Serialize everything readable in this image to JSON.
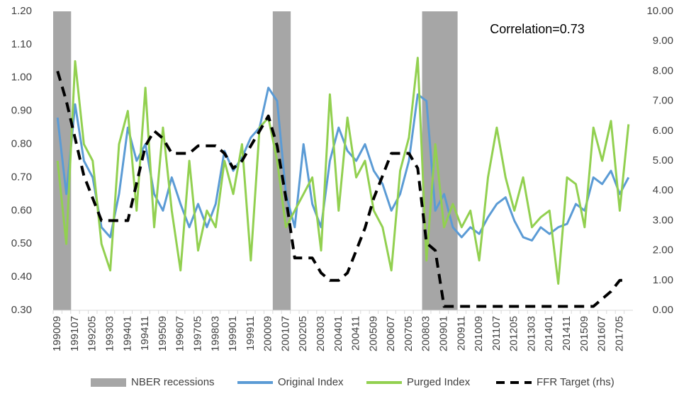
{
  "chart_data": {
    "type": "line",
    "annotation": "Correlation=0.73",
    "categories": [
      "199009",
      null,
      "199107",
      null,
      "199205",
      null,
      "199303",
      null,
      "199401",
      null,
      "199411",
      null,
      "199509",
      null,
      "199607",
      null,
      "199705",
      null,
      "199803",
      null,
      "199901",
      null,
      "199911",
      null,
      "200009",
      null,
      "200107",
      null,
      "200205",
      null,
      "200303",
      null,
      "200401",
      null,
      "200411",
      null,
      "200509",
      null,
      "200607",
      null,
      "200705",
      null,
      "200803",
      null,
      "200901",
      null,
      "200911",
      null,
      "201009",
      null,
      "201107",
      null,
      "201205",
      null,
      "201303",
      null,
      "201401",
      null,
      "201411",
      null,
      "201509",
      null,
      "201607",
      null,
      "201705",
      null
    ],
    "ylim": [
      0.3,
      1.2
    ],
    "yticks": [
      {
        "value": 0.3,
        "label": "0.30"
      },
      {
        "value": 0.4,
        "label": "0.40"
      },
      {
        "value": 0.5,
        "label": "0.50"
      },
      {
        "value": 0.6,
        "label": "0.60"
      },
      {
        "value": 0.7,
        "label": "0.70"
      },
      {
        "value": 0.8,
        "label": "0.80"
      },
      {
        "value": 0.9,
        "label": "0.90"
      },
      {
        "value": 1.0,
        "label": "1.00"
      },
      {
        "value": 1.1,
        "label": "1.10"
      },
      {
        "value": 1.2,
        "label": "1.20"
      }
    ],
    "y2lim": [
      0,
      10
    ],
    "y2ticks": [
      {
        "value": 0,
        "label": "0.00"
      },
      {
        "value": 1,
        "label": "1.00"
      },
      {
        "value": 2,
        "label": "2.00"
      },
      {
        "value": 3,
        "label": "3.00"
      },
      {
        "value": 4,
        "label": "4.00"
      },
      {
        "value": 5,
        "label": "5.00"
      },
      {
        "value": 6,
        "label": "6.00"
      },
      {
        "value": 7,
        "label": "7.00"
      },
      {
        "value": 8,
        "label": "8.00"
      },
      {
        "value": 9,
        "label": "9.00"
      },
      {
        "value": 10,
        "label": "10.00"
      }
    ],
    "series": [
      {
        "name": "NBER recessions",
        "type": "bar",
        "color": "#a6a6a6",
        "values": [
          1.2,
          1.2,
          null,
          null,
          null,
          null,
          null,
          null,
          null,
          null,
          null,
          null,
          null,
          null,
          null,
          null,
          null,
          null,
          null,
          null,
          null,
          null,
          null,
          null,
          null,
          1.2,
          1.2,
          null,
          null,
          null,
          null,
          null,
          null,
          null,
          null,
          null,
          null,
          null,
          null,
          null,
          null,
          null,
          1.2,
          1.2,
          1.2,
          1.2,
          null,
          null,
          null,
          null,
          null,
          null,
          null,
          null,
          null,
          null,
          null,
          null,
          null,
          null,
          null,
          null,
          null,
          null,
          null,
          null
        ]
      },
      {
        "name": "Original Index",
        "type": "line",
        "color": "#5b9bd5",
        "values": [
          0.88,
          0.65,
          0.92,
          0.75,
          0.7,
          0.55,
          0.52,
          0.65,
          0.85,
          0.75,
          0.8,
          0.65,
          0.6,
          0.7,
          0.62,
          0.55,
          0.62,
          0.55,
          0.62,
          0.78,
          0.72,
          0.76,
          0.82,
          0.85,
          0.97,
          0.93,
          0.65,
          0.55,
          0.8,
          0.62,
          0.55,
          0.75,
          0.85,
          0.78,
          0.75,
          0.8,
          0.72,
          0.68,
          0.6,
          0.65,
          0.75,
          0.95,
          0.93,
          0.6,
          0.65,
          0.55,
          0.52,
          0.55,
          0.53,
          0.58,
          0.62,
          0.64,
          0.57,
          0.52,
          0.51,
          0.55,
          0.53,
          0.55,
          0.56,
          0.62,
          0.6,
          0.7,
          0.68,
          0.72,
          0.65,
          0.7
        ]
      },
      {
        "name": "Purged Index",
        "type": "line",
        "color": "#92d050",
        "values": [
          0.75,
          0.5,
          1.05,
          0.8,
          0.75,
          0.5,
          0.42,
          0.8,
          0.9,
          0.6,
          0.97,
          0.55,
          0.85,
          0.6,
          0.42,
          0.75,
          0.48,
          0.6,
          0.55,
          0.75,
          0.65,
          0.8,
          0.45,
          0.85,
          0.88,
          0.75,
          0.55,
          0.6,
          0.65,
          0.7,
          0.48,
          0.95,
          0.6,
          0.88,
          0.7,
          0.75,
          0.6,
          0.55,
          0.42,
          0.72,
          0.82,
          1.06,
          0.45,
          0.8,
          0.55,
          0.62,
          0.55,
          0.6,
          0.45,
          0.7,
          0.85,
          0.7,
          0.6,
          0.7,
          0.55,
          0.58,
          0.6,
          0.38,
          0.7,
          0.68,
          0.55,
          0.85,
          0.75,
          0.87,
          0.6,
          0.86
        ]
      },
      {
        "name": "FFR Target (rhs)",
        "type": "dashed",
        "axis": "y2",
        "color": "#000000",
        "values": [
          8.0,
          7.0,
          5.75,
          4.5,
          3.75,
          3.0,
          3.0,
          3.0,
          3.0,
          4.25,
          5.5,
          6.0,
          5.75,
          5.25,
          5.25,
          5.25,
          5.5,
          5.5,
          5.5,
          5.25,
          4.75,
          5.0,
          5.5,
          6.0,
          6.5,
          5.5,
          3.75,
          1.75,
          1.75,
          1.75,
          1.25,
          1.0,
          1.0,
          1.25,
          2.0,
          2.75,
          3.75,
          4.5,
          5.25,
          5.25,
          5.25,
          4.75,
          2.25,
          2.0,
          0.13,
          0.13,
          0.13,
          0.13,
          0.13,
          0.13,
          0.13,
          0.13,
          0.13,
          0.13,
          0.13,
          0.13,
          0.13,
          0.13,
          0.13,
          0.13,
          0.13,
          0.13,
          0.38,
          0.63,
          1.0,
          1.0
        ]
      }
    ]
  }
}
